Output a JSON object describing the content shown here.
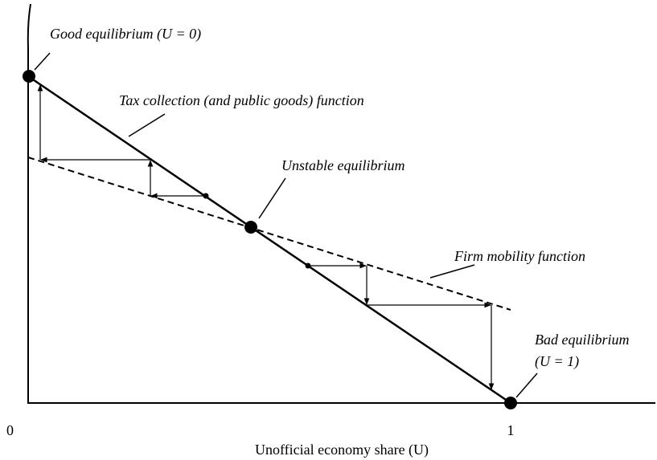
{
  "labels": {
    "good": "Good equilibrium (U = 0)",
    "tax": "Tax collection (and public goods) function",
    "unstable": "Unstable equilibrium",
    "firm": "Firm mobility function",
    "bad": "Bad equilibrium",
    "bad_sub": "(U = 1)"
  },
  "axis": {
    "origin": "0",
    "one": "1",
    "x_label": "Unofficial economy share (U)"
  }
}
